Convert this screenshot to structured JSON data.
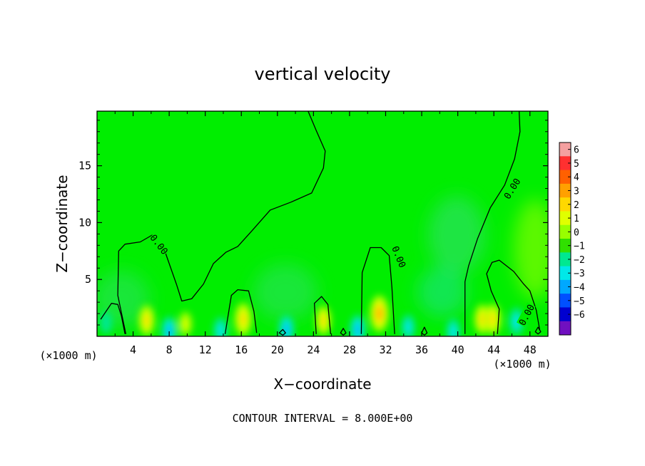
{
  "chart_data": {
    "type": "heatmap",
    "title": "vertical velocity",
    "xlabel": "X−coordinate",
    "ylabel": "Z−coordinate",
    "x_unit_left": "(×1000 m)",
    "x_unit_right": "(×1000 m)",
    "xlim": [
      0,
      50
    ],
    "ylim": [
      0,
      19.8
    ],
    "x_ticks": [
      "4",
      "8",
      "12",
      "16",
      "20",
      "24",
      "28",
      "32",
      "36",
      "40",
      "44",
      "48"
    ],
    "y_ticks": [
      "5",
      "10",
      "15"
    ],
    "contour_label": "0.00",
    "contour_interval_text": "CONTOUR INTERVAL = 8.000E+00",
    "colorbar": {
      "ticks": [
        "6",
        "5",
        "4",
        "3",
        "2",
        "1",
        "0",
        "−1",
        "−2",
        "−3",
        "−4",
        "−5",
        "−6"
      ],
      "colors": [
        "#f4a0a0",
        "#ff3030",
        "#ff6000",
        "#ffa000",
        "#ffd800",
        "#e0ff00",
        "#98ff00",
        "#30e000",
        "#00e890",
        "#00e8e8",
        "#00a8ff",
        "#0050ff",
        "#0000d0",
        "#7010c0"
      ]
    },
    "features": [
      {
        "x": 5.5,
        "z": 1.4,
        "w": 2.9
      },
      {
        "x": 9.8,
        "z": 1.1,
        "w": 1.8
      },
      {
        "x": 16.2,
        "z": 1.5,
        "w": 3.4
      },
      {
        "x": 25.1,
        "z": 1.4,
        "w": 2.7
      },
      {
        "x": 31.3,
        "z": 2.0,
        "w": 4.0
      },
      {
        "x": 42.7,
        "z": 1.5,
        "w": 2.8
      },
      {
        "x": 43.9,
        "z": 1.5,
        "w": 3.0
      },
      {
        "x": 8.0,
        "z": 0.5,
        "w": -2.5
      },
      {
        "x": 13.7,
        "z": 0.5,
        "w": -2.2
      },
      {
        "x": 21.0,
        "z": 0.6,
        "w": -2.6
      },
      {
        "x": 28.9,
        "z": 0.6,
        "w": -2.7
      },
      {
        "x": 34.5,
        "z": 0.8,
        "w": -2.0
      },
      {
        "x": 39.5,
        "z": 0.4,
        "w": -2.2
      },
      {
        "x": 46.5,
        "z": 1.3,
        "w": -2.4
      },
      {
        "x": 1.0,
        "z": 1.2,
        "w": -1.4
      }
    ],
    "contours": [
      {
        "type": "line",
        "points": [
          [
            0.4,
            1.5
          ],
          [
            1.6,
            2.9
          ],
          [
            2.3,
            2.8
          ],
          [
            2.7,
            1.8
          ],
          [
            3.1,
            0.2
          ]
        ]
      },
      {
        "type": "line",
        "points": [
          [
            3.2,
            0.2
          ],
          [
            2.3,
            3.6
          ],
          [
            2.4,
            7.5
          ],
          [
            3.1,
            8.1
          ],
          [
            4.8,
            8.3
          ],
          [
            6.1,
            8.9
          ],
          [
            7.6,
            7.3
          ],
          [
            8.8,
            4.6
          ],
          [
            9.4,
            3.1
          ],
          [
            10.5,
            3.3
          ],
          [
            11.8,
            4.6
          ],
          [
            12.9,
            6.4
          ],
          [
            14.3,
            7.4
          ],
          [
            15.6,
            7.9
          ],
          [
            17.2,
            9.3
          ],
          [
            19.2,
            11.1
          ],
          [
            21.5,
            11.8
          ],
          [
            23.8,
            12.6
          ],
          [
            25.1,
            14.8
          ],
          [
            25.3,
            16.3
          ],
          [
            24.3,
            18.1
          ],
          [
            23.4,
            19.8
          ]
        ]
      },
      {
        "type": "line",
        "points": [
          [
            14.2,
            0.2
          ],
          [
            14.9,
            3.6
          ],
          [
            15.6,
            4.1
          ],
          [
            16.8,
            4.0
          ],
          [
            17.4,
            2.2
          ],
          [
            17.7,
            0.3
          ]
        ]
      },
      {
        "type": "line",
        "points": [
          [
            24.3,
            0.2
          ],
          [
            24.1,
            2.9
          ],
          [
            24.9,
            3.5
          ],
          [
            25.6,
            2.8
          ],
          [
            25.9,
            0.2
          ]
        ]
      },
      {
        "type": "line",
        "points": [
          [
            29.3,
            0.2
          ],
          [
            29.4,
            5.6
          ],
          [
            30.3,
            7.8
          ],
          [
            31.5,
            7.8
          ],
          [
            32.4,
            7.1
          ],
          [
            32.7,
            4.3
          ],
          [
            33.0,
            0.2
          ]
        ]
      },
      {
        "type": "line",
        "points": [
          [
            40.8,
            0.2
          ],
          [
            40.8,
            4.8
          ],
          [
            41.2,
            6.2
          ],
          [
            42.2,
            8.6
          ],
          [
            43.6,
            11.3
          ],
          [
            45.2,
            13.3
          ],
          [
            46.3,
            15.6
          ],
          [
            46.9,
            18.0
          ],
          [
            46.8,
            19.8
          ]
        ]
      },
      {
        "type": "line",
        "points": [
          [
            49.1,
            0.5
          ],
          [
            48.7,
            2.3
          ],
          [
            48.0,
            4.0
          ],
          [
            47.3,
            4.6
          ],
          [
            46.2,
            5.7
          ],
          [
            44.6,
            6.7
          ],
          [
            43.8,
            6.5
          ],
          [
            43.2,
            5.5
          ],
          [
            43.7,
            4.0
          ],
          [
            44.6,
            2.4
          ],
          [
            44.4,
            0.2
          ]
        ]
      },
      {
        "type": "ring",
        "points": [
          [
            20.2,
            0.3
          ],
          [
            20.6,
            0.6
          ],
          [
            20.9,
            0.3
          ],
          [
            20.6,
            0.1
          ]
        ]
      },
      {
        "type": "ring",
        "points": [
          [
            27.0,
            0.3
          ],
          [
            27.3,
            0.7
          ],
          [
            27.6,
            0.3
          ],
          [
            27.3,
            0.1
          ]
        ]
      },
      {
        "type": "ring",
        "points": [
          [
            36.0,
            0.3
          ],
          [
            36.3,
            0.8
          ],
          [
            36.6,
            0.3
          ],
          [
            36.3,
            0.1
          ]
        ]
      },
      {
        "type": "ring",
        "points": [
          [
            48.6,
            0.4
          ],
          [
            48.9,
            0.8
          ],
          [
            49.2,
            0.4
          ],
          [
            48.9,
            0.2
          ]
        ]
      }
    ],
    "contour_label_positions": [
      {
        "x": 6.9,
        "z": 8.1,
        "angle": 52
      },
      {
        "x": 33.5,
        "z": 7.0,
        "angle": 68
      },
      {
        "x": 46.0,
        "z": 13.0,
        "angle": -58
      },
      {
        "x": 47.6,
        "z": 1.9,
        "angle": -62
      }
    ]
  }
}
